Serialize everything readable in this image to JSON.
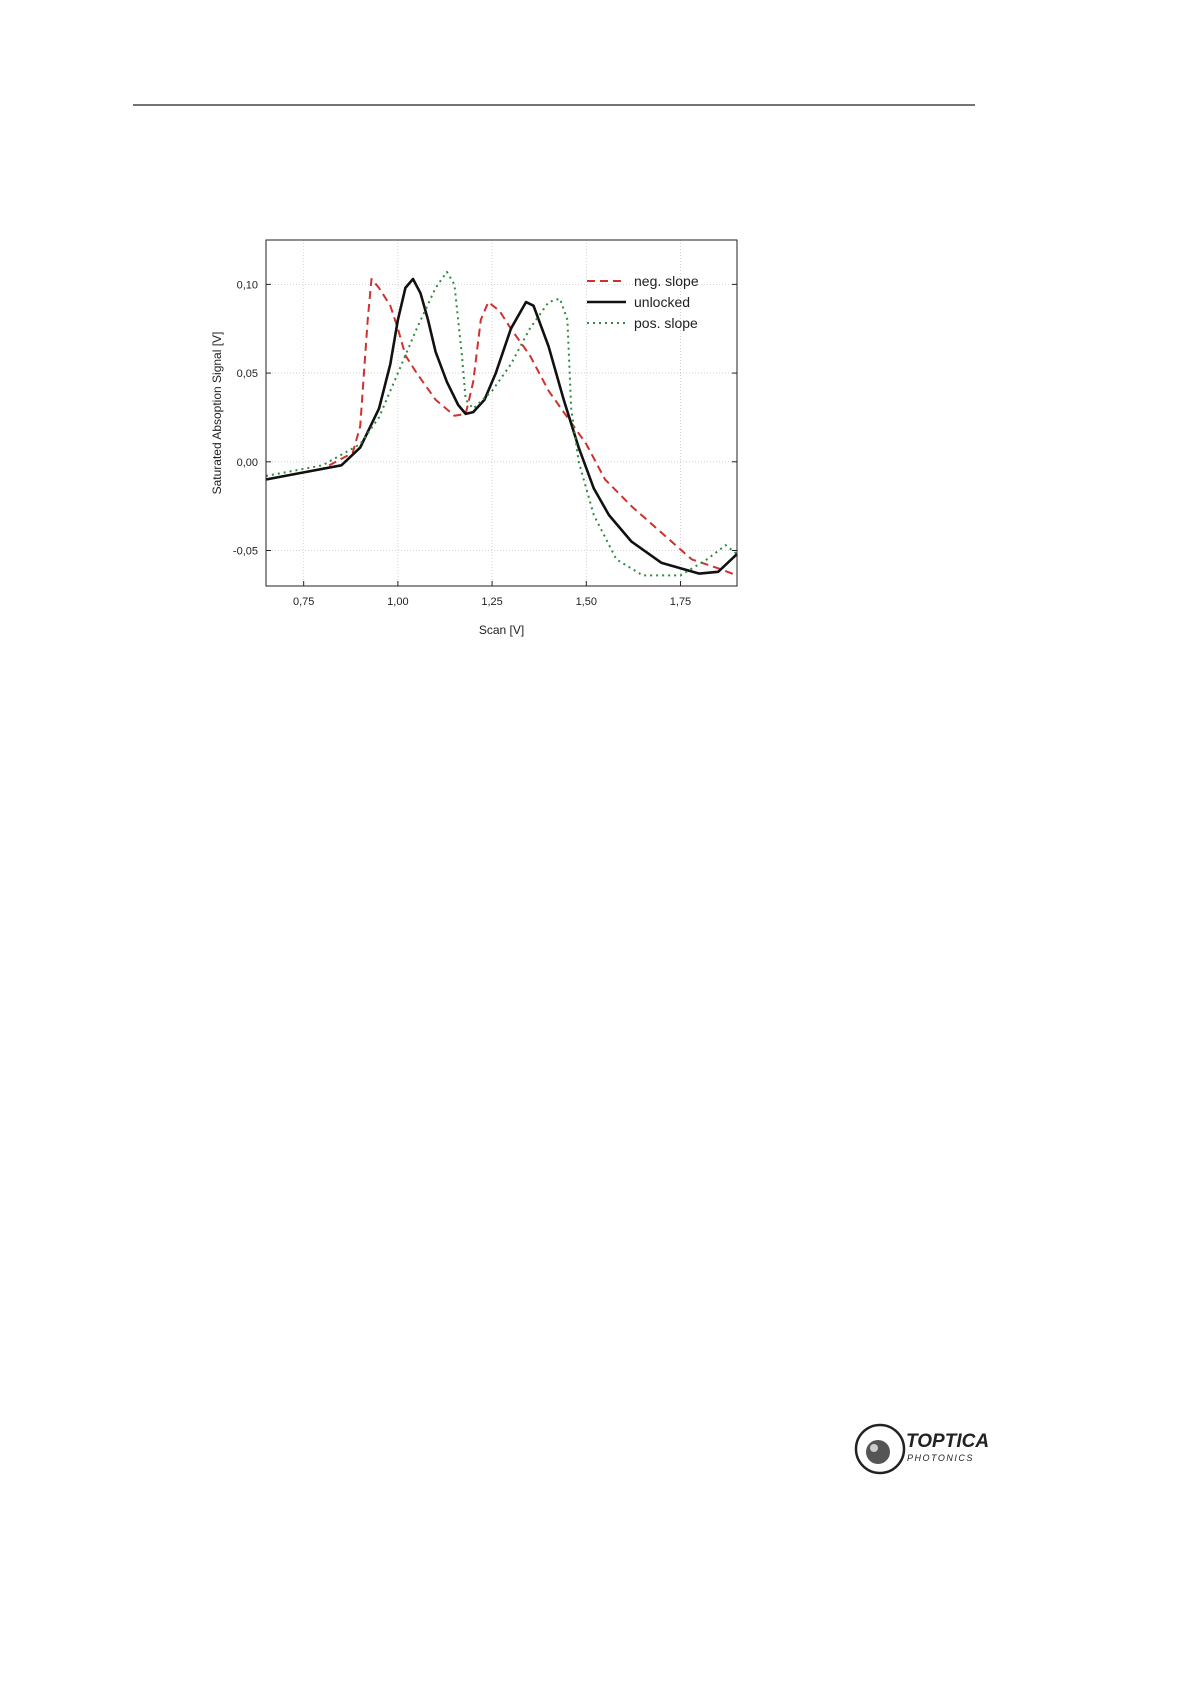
{
  "chart_data": {
    "type": "line",
    "xlabel": "Scan [V]",
    "ylabel": "Saturated Absoption Signal [V]",
    "xlim": [
      0.65,
      1.9
    ],
    "ylim": [
      -0.07,
      0.125
    ],
    "xticks": [
      {
        "value": 0.75,
        "label": "0,75"
      },
      {
        "value": 1.0,
        "label": "1,00"
      },
      {
        "value": 1.25,
        "label": "1,25"
      },
      {
        "value": 1.5,
        "label": "1,50"
      },
      {
        "value": 1.75,
        "label": "1,75"
      }
    ],
    "yticks": [
      {
        "value": -0.05,
        "label": "-0,05"
      },
      {
        "value": 0,
        "label": "0,00"
      },
      {
        "value": 0.05,
        "label": "0,05"
      },
      {
        "value": 0.1,
        "label": "0,10"
      }
    ],
    "grid": true,
    "legend": "upper right",
    "series": [
      {
        "name": "neg. slope",
        "color": "#d0312d",
        "style": "dashed",
        "x": [
          0.65,
          0.8,
          0.88,
          0.9,
          0.92,
          0.93,
          0.95,
          0.98,
          1.0,
          1.02,
          1.05,
          1.1,
          1.15,
          1.18,
          1.2,
          1.22,
          1.24,
          1.27,
          1.3,
          1.35,
          1.4,
          1.45,
          1.5,
          1.55,
          1.62,
          1.7,
          1.78,
          1.85,
          1.9
        ],
        "values": [
          -0.01,
          -0.004,
          0.005,
          0.02,
          0.08,
          0.103,
          0.098,
          0.088,
          0.075,
          0.06,
          0.05,
          0.035,
          0.026,
          0.027,
          0.045,
          0.08,
          0.09,
          0.085,
          0.075,
          0.06,
          0.04,
          0.025,
          0.01,
          -0.01,
          -0.025,
          -0.04,
          -0.055,
          -0.06,
          -0.064
        ]
      },
      {
        "name": "unlocked",
        "color": "#111111",
        "style": "solid",
        "x": [
          0.65,
          0.75,
          0.85,
          0.9,
          0.95,
          0.98,
          1.0,
          1.02,
          1.04,
          1.06,
          1.08,
          1.1,
          1.13,
          1.16,
          1.18,
          1.2,
          1.23,
          1.26,
          1.3,
          1.34,
          1.36,
          1.4,
          1.44,
          1.48,
          1.52,
          1.56,
          1.62,
          1.7,
          1.8,
          1.85,
          1.9
        ],
        "values": [
          -0.01,
          -0.006,
          -0.002,
          0.008,
          0.03,
          0.055,
          0.08,
          0.098,
          0.103,
          0.095,
          0.08,
          0.062,
          0.045,
          0.032,
          0.027,
          0.028,
          0.035,
          0.05,
          0.075,
          0.09,
          0.088,
          0.065,
          0.035,
          0.008,
          -0.015,
          -0.03,
          -0.045,
          -0.057,
          -0.063,
          -0.062,
          -0.052
        ]
      },
      {
        "name": "pos. slope",
        "color": "#2e8b3e",
        "style": "dotted",
        "x": [
          0.65,
          0.8,
          0.9,
          0.95,
          1.0,
          1.05,
          1.1,
          1.13,
          1.15,
          1.17,
          1.18,
          1.2,
          1.25,
          1.3,
          1.35,
          1.4,
          1.43,
          1.45,
          1.46,
          1.48,
          1.52,
          1.58,
          1.65,
          1.75,
          1.82,
          1.87,
          1.9
        ],
        "values": [
          -0.008,
          -0.002,
          0.01,
          0.025,
          0.05,
          0.075,
          0.098,
          0.107,
          0.1,
          0.06,
          0.035,
          0.03,
          0.04,
          0.055,
          0.075,
          0.09,
          0.092,
          0.08,
          0.03,
          0.0,
          -0.03,
          -0.055,
          -0.064,
          -0.064,
          -0.055,
          -0.047,
          -0.052
        ]
      }
    ]
  },
  "logo": {
    "name": "TOPTICA",
    "subtitle": "PHOTONICS"
  }
}
